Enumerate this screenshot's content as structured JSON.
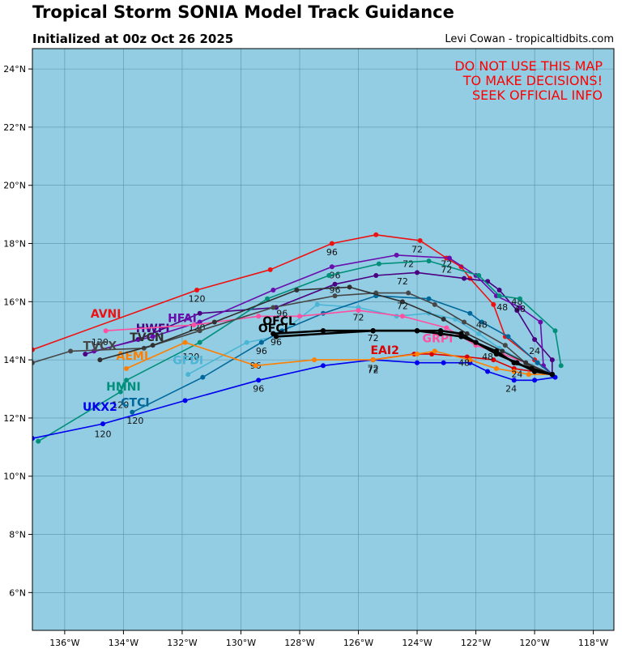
{
  "header": {
    "title": "Tropical Storm SONIA Model Track Guidance",
    "subtitle": "Initialized at 00z Oct 26 2025",
    "credit": "Levi Cowan - tropicaltidbits.com"
  },
  "chart_data": {
    "type": "map-tracks",
    "xlim": [
      -137.1,
      -117.3
    ],
    "ylim": [
      4.7,
      24.7
    ],
    "x_ticks": [
      -136,
      -134,
      -132,
      -130,
      -128,
      -126,
      -124,
      -122,
      -120,
      -118
    ],
    "x_tick_labels": [
      "136°W",
      "134°W",
      "132°W",
      "130°W",
      "128°W",
      "126°W",
      "124°W",
      "122°W",
      "120°W",
      "118°W"
    ],
    "y_ticks": [
      6,
      8,
      10,
      12,
      14,
      16,
      18,
      20,
      22,
      24
    ],
    "y_tick_labels": [
      "6°N",
      "8°N",
      "10°N",
      "12°N",
      "14°N",
      "16°N",
      "18°N",
      "20°N",
      "22°N",
      "24°N"
    ],
    "warning": [
      "DO NOT USE THIS MAP",
      "TO MAKE DECISIONS!",
      "SEEK OFFICIAL INFO"
    ],
    "colors": {
      "ocean": "#93CDE3",
      "grid": "#5f8fa3",
      "warning": "#ff0000"
    },
    "series": [
      {
        "name": "AVNI",
        "color": "#ee1111",
        "lx": -134.6,
        "ly": 15.45,
        "bold": false,
        "points": [
          [
            -119.4,
            13.5
          ],
          [
            -120.0,
            14.0
          ],
          [
            -121.0,
            14.8
          ],
          [
            -121.4,
            15.9
          ],
          [
            -122.2,
            16.8
          ],
          [
            -122.5,
            17.2
          ],
          [
            -123.0,
            17.5
          ],
          [
            -123.9,
            18.1
          ],
          [
            -125.4,
            18.3
          ],
          [
            -126.9,
            18.0
          ],
          [
            -129.0,
            17.1
          ],
          [
            -131.5,
            16.4
          ],
          [
            -137.1,
            14.35
          ]
        ],
        "labels": [
          [
            "24",
            -120.0,
            14.2
          ],
          [
            "48",
            -121.1,
            15.7
          ],
          [
            "72",
            -124.0,
            17.7
          ],
          [
            "96",
            -126.9,
            17.6
          ],
          [
            "120",
            -131.5,
            16.0
          ]
        ]
      },
      {
        "name": "HWFI",
        "color": "#4b0082",
        "lx": -133.0,
        "ly": 14.95,
        "bold": false,
        "points": [
          [
            -119.4,
            13.5
          ],
          [
            -119.4,
            14.0
          ],
          [
            -120.0,
            14.7
          ],
          [
            -120.6,
            15.7
          ],
          [
            -121.2,
            16.4
          ],
          [
            -121.6,
            16.7
          ],
          [
            -122.4,
            16.8
          ],
          [
            -124.0,
            17.0
          ],
          [
            -125.4,
            16.9
          ],
          [
            -126.8,
            16.6
          ],
          [
            -128.8,
            15.8
          ],
          [
            -131.4,
            15.6
          ],
          [
            -133.5,
            14.7
          ],
          [
            -135.3,
            14.2
          ]
        ],
        "labels": [
          [
            "48",
            -120.6,
            15.9
          ],
          [
            "72",
            -124.3,
            17.2
          ],
          [
            "96",
            -126.8,
            16.8
          ]
        ]
      },
      {
        "name": "HFAI",
        "color": "#6a0dad",
        "lx": -132.0,
        "ly": 15.3,
        "bold": false,
        "points": [
          [
            -119.4,
            13.5
          ],
          [
            -119.7,
            13.8
          ],
          [
            -119.8,
            15.3
          ],
          [
            -120.5,
            15.8
          ],
          [
            -121.3,
            16.2
          ],
          [
            -122.0,
            16.9
          ],
          [
            -122.9,
            17.5
          ],
          [
            -124.7,
            17.6
          ],
          [
            -126.9,
            17.2
          ],
          [
            -128.9,
            16.4
          ],
          [
            -131.4,
            15.3
          ],
          [
            -133.0,
            14.8
          ],
          [
            -135.0,
            14.3
          ]
        ],
        "labels": [
          [
            "48",
            -120.5,
            15.65
          ],
          [
            "72",
            -123.0,
            17.2
          ],
          [
            "120",
            -131.5,
            15.0
          ]
        ]
      },
      {
        "name": "HMNI",
        "color": "#00907a",
        "lx": -134.0,
        "ly": 12.95,
        "bold": false,
        "points": [
          [
            -119.1,
            13.8
          ],
          [
            -119.3,
            15.0
          ],
          [
            -120.5,
            16.1
          ],
          [
            -121.2,
            16.2
          ],
          [
            -121.9,
            16.9
          ],
          [
            -123.6,
            17.4
          ],
          [
            -125.3,
            17.3
          ],
          [
            -127.0,
            16.9
          ],
          [
            -129.1,
            16.1
          ],
          [
            -131.4,
            14.6
          ],
          [
            -133.9,
            13.3
          ],
          [
            -134.1,
            12.9
          ],
          [
            -136.9,
            11.2
          ]
        ],
        "labels": [
          [
            "72",
            -123.0,
            17.0
          ],
          [
            "96",
            -126.8,
            16.3
          ],
          [
            "120",
            -134.1,
            12.35
          ]
        ]
      },
      {
        "name": "GFDI",
        "color": "#4bb5d6",
        "lx": -131.8,
        "ly": 13.85,
        "bold": false,
        "points": [
          [
            -119.4,
            13.5
          ],
          [
            -120.1,
            13.8
          ],
          [
            -121.2,
            14.4
          ],
          [
            -121.9,
            14.9
          ],
          [
            -122.7,
            15.4
          ],
          [
            -123.6,
            15.6
          ],
          [
            -124.7,
            15.5
          ],
          [
            -126.0,
            15.8
          ],
          [
            -127.4,
            15.9
          ],
          [
            -128.8,
            14.8
          ],
          [
            -129.8,
            14.6
          ],
          [
            -131.8,
            13.5
          ]
        ],
        "labels": [
          [
            "72",
            -126.0,
            15.35
          ],
          [
            "96",
            -129.5,
            13.7
          ],
          [
            "120",
            -131.7,
            14.0
          ]
        ]
      },
      {
        "name": "CTCI",
        "color": "#00689b",
        "lx": -133.6,
        "ly": 12.4,
        "bold": false,
        "points": [
          [
            -119.4,
            13.5
          ],
          [
            -119.9,
            13.9
          ],
          [
            -120.9,
            14.8
          ],
          [
            -121.8,
            15.3
          ],
          [
            -122.2,
            15.6
          ],
          [
            -123.6,
            16.1
          ],
          [
            -125.4,
            16.2
          ],
          [
            -127.2,
            15.6
          ],
          [
            -128.6,
            15.0
          ],
          [
            -129.3,
            14.6
          ],
          [
            -131.3,
            13.4
          ],
          [
            -133.7,
            12.2
          ]
        ],
        "labels": [
          [
            "48",
            -121.8,
            15.1
          ],
          [
            "96",
            -129.3,
            14.2
          ],
          [
            "120",
            -133.6,
            11.8
          ]
        ]
      },
      {
        "name": "UKX2",
        "color": "#0000ee",
        "lx": -134.8,
        "ly": 12.25,
        "bold": false,
        "points": [
          [
            -119.3,
            13.4
          ],
          [
            -120.0,
            13.3
          ],
          [
            -120.7,
            13.3
          ],
          [
            -121.6,
            13.6
          ],
          [
            -122.2,
            13.9
          ],
          [
            -123.1,
            13.9
          ],
          [
            -124.0,
            13.9
          ],
          [
            -125.5,
            14.0
          ],
          [
            -127.2,
            13.8
          ],
          [
            -129.4,
            13.3
          ],
          [
            -131.9,
            12.6
          ],
          [
            -134.7,
            11.8
          ],
          [
            -137.1,
            11.3
          ]
        ],
        "labels": [
          [
            "24",
            -120.8,
            12.9
          ],
          [
            "72",
            -125.5,
            13.55
          ],
          [
            "96",
            -129.4,
            12.9
          ],
          [
            "120",
            -134.7,
            11.35
          ]
        ]
      },
      {
        "name": "EAI2",
        "color": "#dd0000",
        "lx": -125.1,
        "ly": 14.2,
        "bold": false,
        "points": [
          [
            -119.4,
            13.5
          ],
          [
            -120.7,
            13.7
          ],
          [
            -121.4,
            14.0
          ],
          [
            -122.3,
            14.1
          ],
          [
            -123.5,
            14.2
          ],
          [
            -124.1,
            14.2
          ],
          [
            -125.5,
            14.0
          ]
        ],
        "labels": [
          [
            "48",
            -121.6,
            14.0
          ],
          [
            "72",
            -125.5,
            13.6
          ]
        ]
      },
      {
        "name": "GRPI",
        "color": "#ff4fa0",
        "lx": -123.3,
        "ly": 14.6,
        "bold": false,
        "points": [
          [
            -119.4,
            13.5
          ],
          [
            -120.3,
            13.9
          ],
          [
            -121.1,
            14.2
          ],
          [
            -122.0,
            14.5
          ],
          [
            -123.0,
            15.1
          ],
          [
            -124.5,
            15.5
          ],
          [
            -126.0,
            15.7
          ],
          [
            -128.0,
            15.5
          ],
          [
            -129.4,
            15.5
          ],
          [
            -131.6,
            15.2
          ],
          [
            -134.6,
            15.0
          ]
        ],
        "labels": [
          [
            "120",
            -134.8,
            14.5
          ]
        ]
      },
      {
        "name": "AEMI",
        "color": "#ff7f00",
        "lx": -133.7,
        "ly": 14.0,
        "bold": false,
        "points": [
          [
            -119.4,
            13.5
          ],
          [
            -120.2,
            13.5
          ],
          [
            -120.7,
            13.6
          ],
          [
            -121.3,
            13.7
          ],
          [
            -122.2,
            14.0
          ],
          [
            -123.4,
            14.3
          ],
          [
            -124.0,
            14.2
          ],
          [
            -125.5,
            14.0
          ],
          [
            -127.5,
            14.0
          ],
          [
            -129.5,
            13.8
          ],
          [
            -131.9,
            14.6
          ],
          [
            -133.9,
            13.7
          ]
        ],
        "labels": [
          [
            "24",
            -120.6,
            13.4
          ],
          [
            "48",
            -122.4,
            13.8
          ]
        ]
      },
      {
        "name": "TVCX",
        "color": "#474747",
        "lx": -134.8,
        "ly": 14.35,
        "bold": false,
        "points": [
          [
            -119.4,
            13.5
          ],
          [
            -120.2,
            13.8
          ],
          [
            -121.0,
            14.5
          ],
          [
            -122.4,
            15.3
          ],
          [
            -123.4,
            15.9
          ],
          [
            -124.3,
            16.3
          ],
          [
            -125.4,
            16.3
          ],
          [
            -126.8,
            16.2
          ],
          [
            -128.9,
            15.8
          ],
          [
            -131.4,
            15.0
          ],
          [
            -133.3,
            14.4
          ],
          [
            -135.8,
            14.3
          ],
          [
            -137.1,
            13.9
          ]
        ],
        "labels": [
          [
            "72",
            -124.5,
            16.6
          ],
          [
            "96",
            -128.6,
            15.5
          ]
        ]
      },
      {
        "name": "TVCN",
        "color": "#303030",
        "lx": -133.2,
        "ly": 14.65,
        "bold": false,
        "points": [
          [
            -119.4,
            13.5
          ],
          [
            -120.3,
            13.9
          ],
          [
            -121.1,
            14.3
          ],
          [
            -122.3,
            14.9
          ],
          [
            -123.1,
            15.4
          ],
          [
            -124.5,
            16.0
          ],
          [
            -126.3,
            16.5
          ],
          [
            -128.1,
            16.4
          ],
          [
            -130.9,
            15.3
          ],
          [
            -133.0,
            14.5
          ],
          [
            -134.8,
            14.0
          ]
        ],
        "labels": [
          [
            "72",
            -124.5,
            15.75
          ]
        ]
      },
      {
        "name": "OFCL",
        "color": "#000000",
        "lx": -128.7,
        "ly": 15.2,
        "bold": true,
        "points": [
          [
            -119.4,
            13.5
          ],
          [
            -120.0,
            13.6
          ],
          [
            -120.6,
            13.9
          ],
          [
            -121.3,
            14.2
          ],
          [
            -122.0,
            14.6
          ],
          [
            -122.5,
            14.9
          ],
          [
            -123.2,
            15.0
          ],
          [
            -124.0,
            15.0
          ],
          [
            -125.5,
            15.0
          ],
          [
            -127.2,
            15.0
          ],
          [
            -128.9,
            14.9
          ]
        ],
        "labels": [
          [
            "72",
            -125.5,
            14.65
          ],
          [
            "96",
            -128.8,
            14.5
          ]
        ]
      },
      {
        "name": "OFCI",
        "color": "#000000",
        "lx": -128.9,
        "ly": 14.95,
        "bold": true,
        "points": [
          [
            -119.4,
            13.5
          ],
          [
            -120.1,
            13.7
          ],
          [
            -120.7,
            13.9
          ],
          [
            -121.3,
            14.3
          ],
          [
            -122.5,
            14.8
          ],
          [
            -123.2,
            14.9
          ],
          [
            -124.0,
            15.0
          ],
          [
            -125.5,
            15.0
          ],
          [
            -128.8,
            14.8
          ]
        ],
        "labels": []
      }
    ]
  }
}
